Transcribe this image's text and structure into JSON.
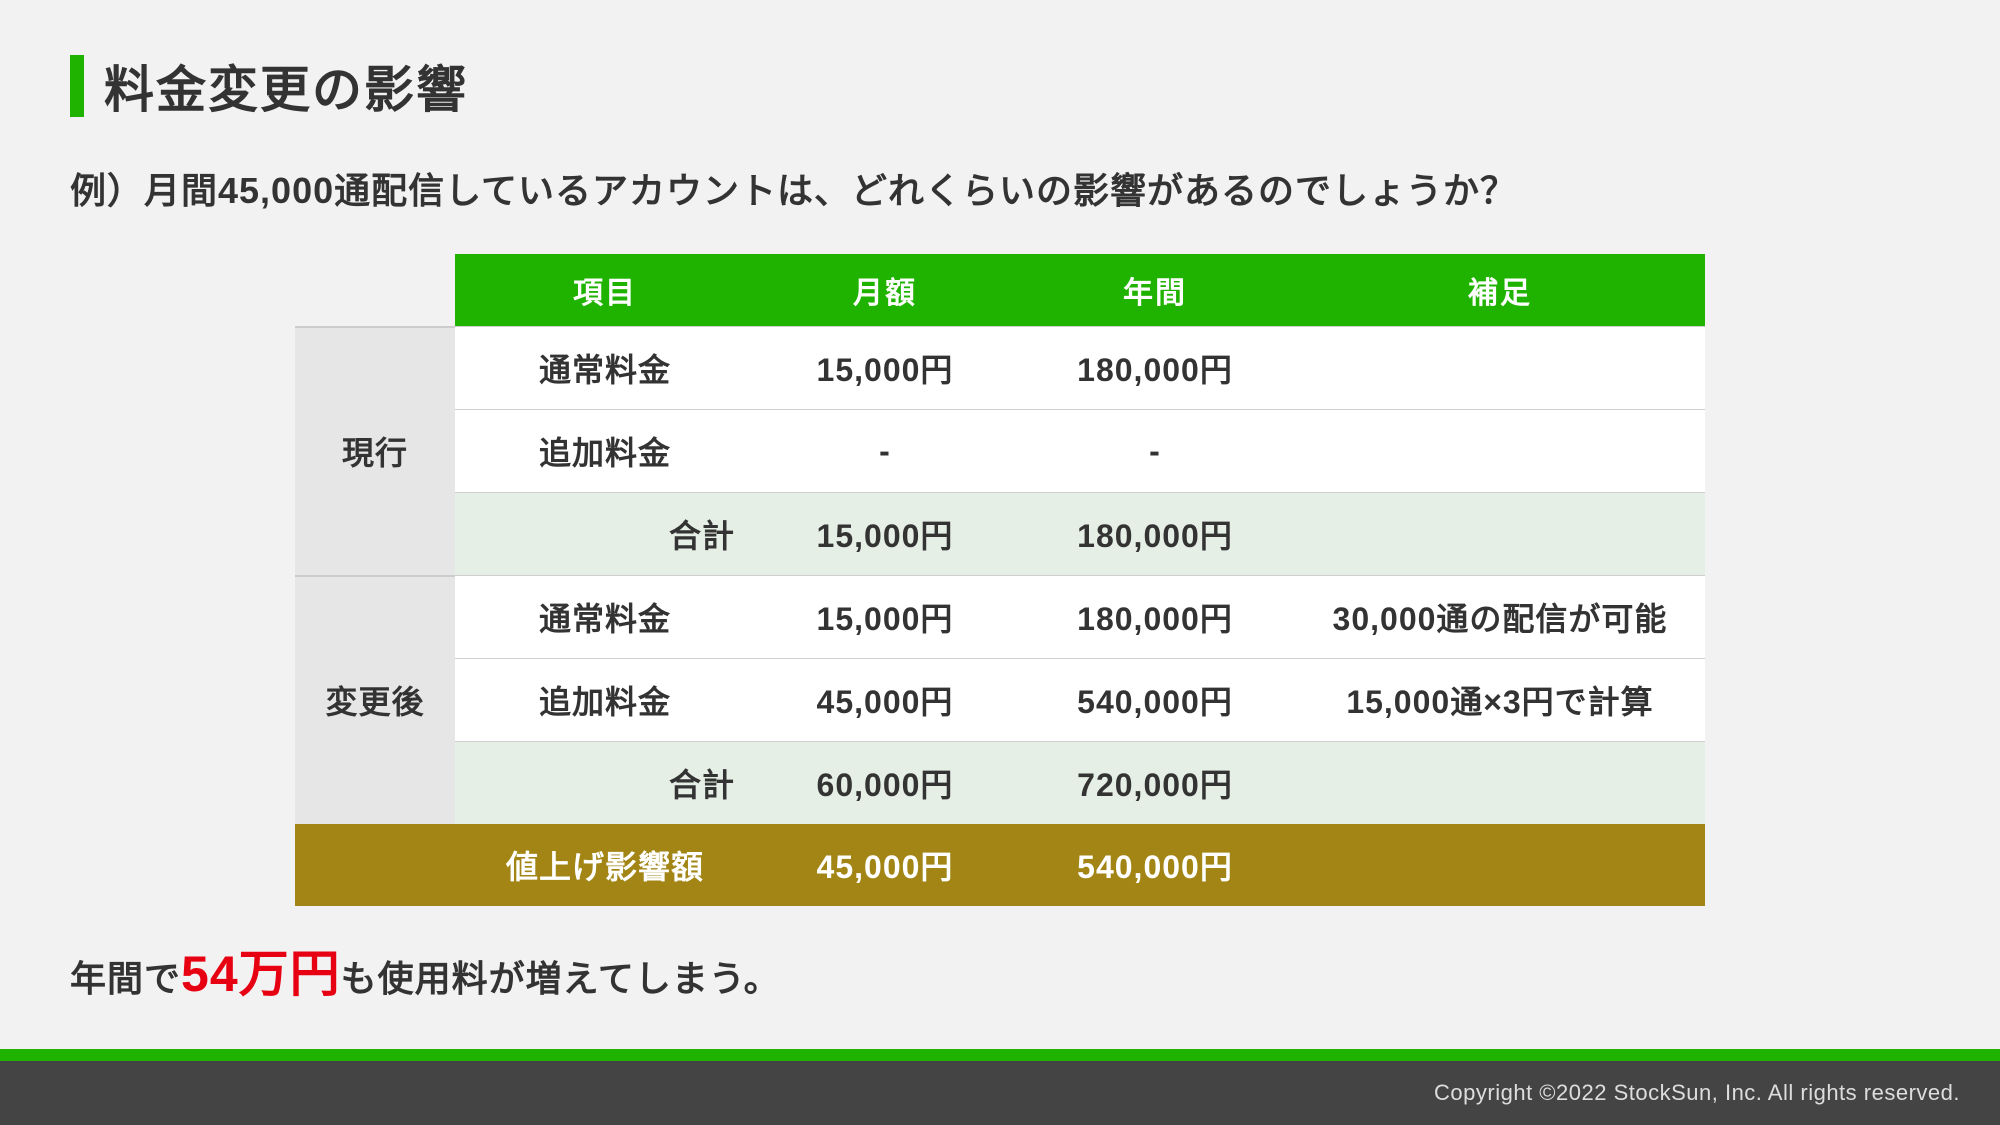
{
  "title": "料金変更の影響",
  "subtitle": "例）月間45,000通配信しているアカウントは、どれくらいの影響があるのでしょうか？",
  "table": {
    "headers": {
      "item": "項目",
      "month": "月額",
      "year": "年間",
      "note": "補足"
    },
    "groups": [
      {
        "label": "現行",
        "rows": [
          {
            "item": "通常料金",
            "month": "15,000円",
            "year": "180,000円",
            "note": ""
          },
          {
            "item": "追加料金",
            "month": "-",
            "year": "-",
            "note": ""
          }
        ],
        "subtotal": {
          "item": "合計",
          "month": "15,000円",
          "year": "180,000円",
          "note": ""
        }
      },
      {
        "label": "変更後",
        "rows": [
          {
            "item": "通常料金",
            "month": "15,000円",
            "year": "180,000円",
            "note": "30,000通の配信が可能"
          },
          {
            "item": "追加料金",
            "month": "45,000円",
            "year": "540,000円",
            "note": "15,000通×3円で計算"
          }
        ],
        "subtotal": {
          "item": "合計",
          "month": "60,000円",
          "year": "720,000円",
          "note": ""
        }
      }
    ],
    "impact": {
      "item": "値上げ影響額",
      "month": "45,000円",
      "year": "540,000円",
      "note": ""
    }
  },
  "summary": {
    "prefix": "年間で",
    "highlight": "54万円",
    "suffix": "も使用料が増えてしまう。"
  },
  "footer": "Copyright ©2022 StockSun, Inc. All rights reserved.",
  "colors": {
    "accent_green": "#1fb300",
    "subtotal_bg": "#e6efe6",
    "group_bg": "#e6e6e6",
    "impact_bg": "#a28514",
    "highlight_red": "#e60012",
    "page_bg": "#f2f2f2",
    "footer_bg": "#444444"
  }
}
